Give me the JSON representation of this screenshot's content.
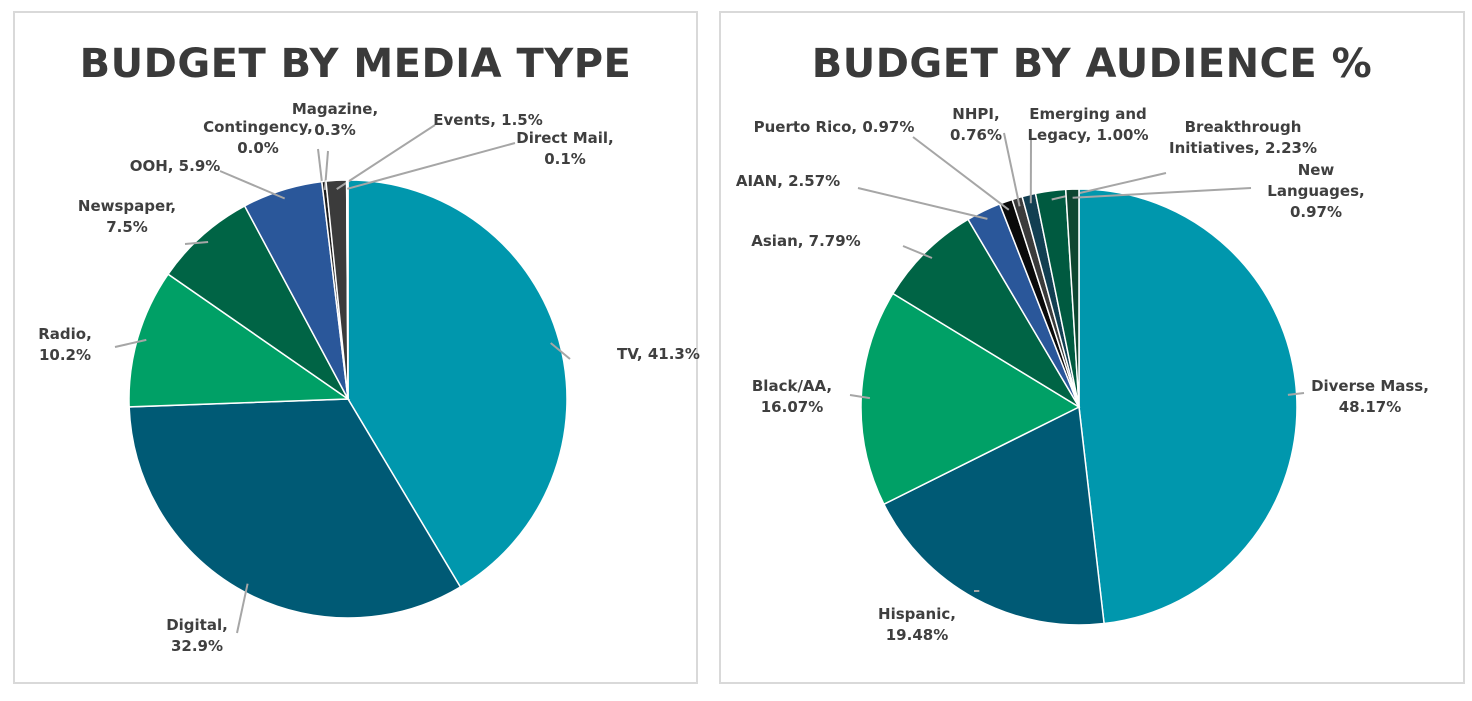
{
  "chart_data": [
    {
      "type": "pie",
      "title": "BUDGET BY MEDIA TYPE",
      "slices": [
        {
          "name": "TV",
          "value": 41.3,
          "label_lines": [
            "TV, 41.3%"
          ],
          "color": "#0097ad"
        },
        {
          "name": "Digital",
          "value": 32.9,
          "label_lines": [
            "Digital,",
            "32.9%"
          ],
          "color": "#005a75"
        },
        {
          "name": "Radio",
          "value": 10.2,
          "label_lines": [
            "Radio,",
            "10.2%"
          ],
          "color": "#00a066"
        },
        {
          "name": "Newspaper",
          "value": 7.5,
          "label_lines": [
            "Newspaper,",
            "7.5%"
          ],
          "color": "#006445"
        },
        {
          "name": "OOH",
          "value": 5.9,
          "label_lines": [
            "OOH, 5.9%"
          ],
          "color": "#2a579a"
        },
        {
          "name": "Contingency",
          "value": 0.0,
          "label_lines": [
            "Contingency,",
            "0.0%"
          ],
          "color": "#111111"
        },
        {
          "name": "Magazine",
          "value": 0.3,
          "label_lines": [
            "Magazine,",
            "0.3%"
          ],
          "color": "#1b1b1b"
        },
        {
          "name": "Events",
          "value": 1.5,
          "label_lines": [
            "Events, 1.5%"
          ],
          "color": "#3b3b3b"
        },
        {
          "name": "Direct Mail",
          "value": 0.1,
          "label_lines": [
            "Direct Mail,",
            "0.1%"
          ],
          "color": "#6a6a6a"
        }
      ]
    },
    {
      "type": "pie",
      "title": "BUDGET BY AUDIENCE %",
      "slices": [
        {
          "name": "Diverse Mass",
          "value": 48.17,
          "label_lines": [
            "Diverse Mass,",
            "48.17%"
          ],
          "color": "#0097ad"
        },
        {
          "name": "Hispanic",
          "value": 19.48,
          "label_lines": [
            "Hispanic,",
            "19.48%"
          ],
          "color": "#005a75"
        },
        {
          "name": "Black/AA",
          "value": 16.07,
          "label_lines": [
            "Black/AA,",
            "16.07%"
          ],
          "color": "#00a066"
        },
        {
          "name": "Asian",
          "value": 7.79,
          "label_lines": [
            "Asian, 7.79%"
          ],
          "color": "#006445"
        },
        {
          "name": "AIAN",
          "value": 2.57,
          "label_lines": [
            "AIAN, 2.57%"
          ],
          "color": "#2a579a"
        },
        {
          "name": "Puerto Rico",
          "value": 0.97,
          "label_lines": [
            "Puerto Rico, 0.97%"
          ],
          "color": "#0a0a0a"
        },
        {
          "name": "NHPI",
          "value": 0.76,
          "label_lines": [
            "NHPI,",
            "0.76%"
          ],
          "color": "#3b3b3b"
        },
        {
          "name": "Emerging and Legacy",
          "value": 1.0,
          "label_lines": [
            "Emerging and",
            "Legacy, 1.00%"
          ],
          "color": "#123f52"
        },
        {
          "name": "Breakthrough Initiatives",
          "value": 2.23,
          "label_lines": [
            "Breakthrough",
            "Initiatives, 2.23%"
          ],
          "color": "#005a40"
        },
        {
          "name": "New Languages",
          "value": 0.97,
          "label_lines": [
            "New",
            "Languages,",
            "0.97%"
          ],
          "color": "#0e4630"
        }
      ]
    }
  ]
}
